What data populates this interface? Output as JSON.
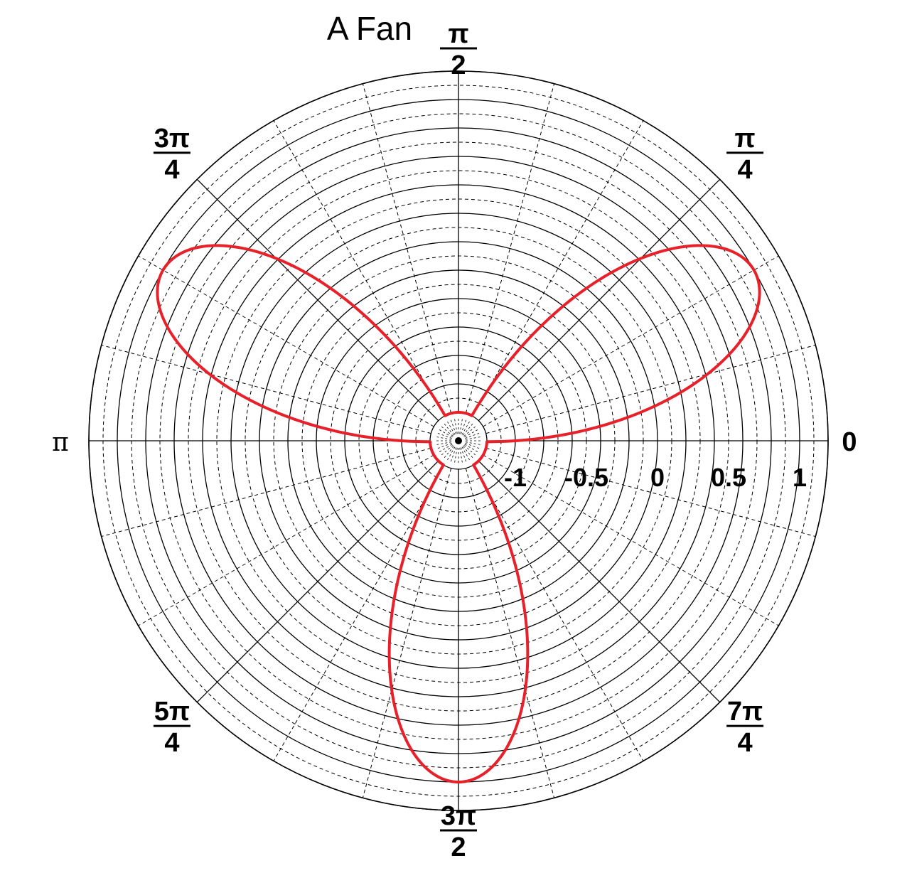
{
  "chart_data": {
    "type": "line",
    "subtype": "polar",
    "title": "A Fan",
    "curve": {
      "equation": "r = -1 + 2*sin(3*theta)",
      "color": "#e8202a",
      "theta_range": [
        0,
        6.283185
      ]
    },
    "radial_axis": {
      "range": [
        -1.2,
        1.2
      ],
      "ticks": [
        -1,
        -0.5,
        0,
        0.5,
        1
      ],
      "tick_labels": [
        "-1",
        "-0.5",
        "0",
        "0.5",
        "1"
      ]
    },
    "angular_labels": [
      {
        "angle": 0,
        "num": "0",
        "den": ""
      },
      {
        "angle": 0.785398,
        "num": "π",
        "den": "4"
      },
      {
        "angle": 1.570796,
        "num": "π",
        "den": "2"
      },
      {
        "angle": 2.356194,
        "num": "3π",
        "den": "4"
      },
      {
        "angle": 3.141593,
        "num": "π",
        "den": ""
      },
      {
        "angle": 3.926991,
        "num": "5π",
        "den": "4"
      },
      {
        "angle": 4.712389,
        "num": "3π",
        "den": "2"
      },
      {
        "angle": 5.497787,
        "num": "7π",
        "den": "4"
      }
    ],
    "grid": true
  }
}
